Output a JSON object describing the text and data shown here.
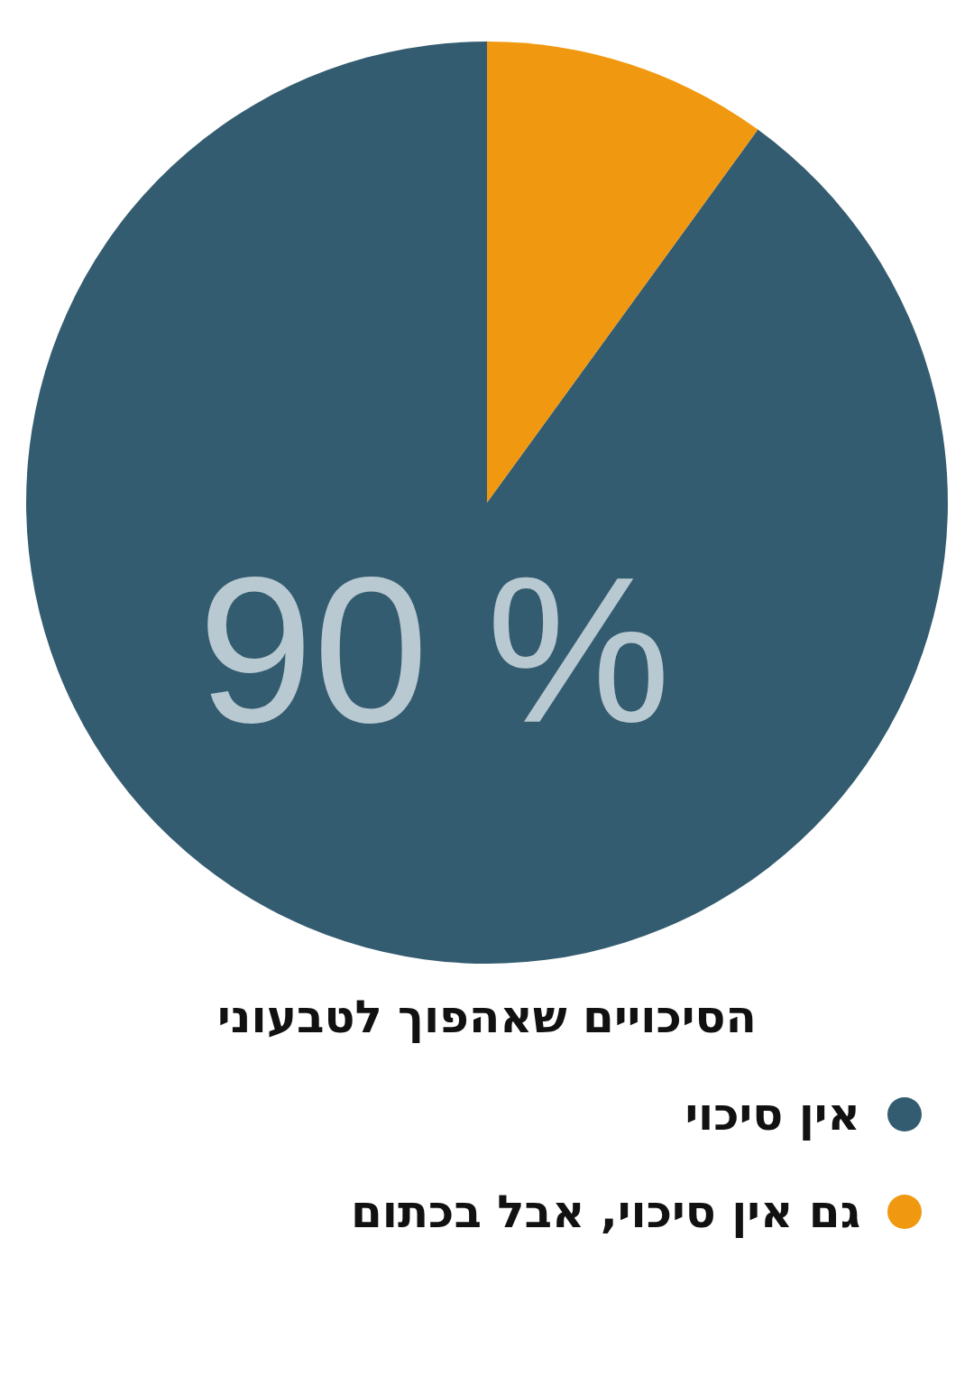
{
  "chart_data": {
    "type": "pie",
    "title": "הסיכויים שאהפוך לטבעוני",
    "categories": [
      "אין סיכוי",
      "גם אין סיכוי, אבל בכתום"
    ],
    "values": [
      90,
      10
    ],
    "value_labels": [
      "90 %",
      null
    ],
    "colors": [
      "#345c70",
      "#f0980f"
    ],
    "legend": "bottom"
  }
}
